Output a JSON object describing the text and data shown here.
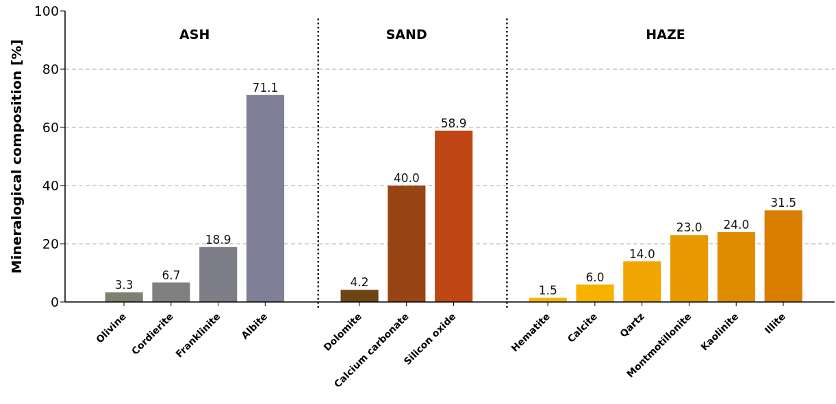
{
  "chart_data": {
    "type": "bar",
    "ylabel": "Mineralogical composition [%]",
    "categories": [
      "Olivine",
      "Cordierite",
      "Franklinite",
      "Albite",
      null,
      "Dolomite",
      "Calcium carbonate",
      "Silicon oxide",
      null,
      "Hematite",
      "Calcite",
      "Qartz",
      "Montmotillonite",
      "Kaolinite",
      "Illite"
    ],
    "values": [
      3.3,
      6.7,
      18.9,
      71.1,
      null,
      4.2,
      40.0,
      58.9,
      null,
      1.5,
      6.0,
      14.0,
      23.0,
      24.0,
      31.5
    ],
    "value_labels": [
      "3.3",
      "6.7",
      "18.9",
      "71.1",
      null,
      "4.2",
      "40.0",
      "58.9",
      null,
      "1.5",
      "6.0",
      "14.0",
      "23.0",
      "24.0",
      "31.5"
    ],
    "colors": [
      "#7f8070",
      "#808080",
      "#7e7e88",
      "#7f7f98",
      null,
      "#6e4415",
      "#994415",
      "#c04715",
      null,
      "#f5b800",
      "#f7b200",
      "#f0a500",
      "#e89800",
      "#e08c00",
      "#d97e00"
    ],
    "ylim": [
      0,
      100
    ],
    "yticks": [
      0,
      20,
      40,
      60,
      80,
      100
    ],
    "grid": "y",
    "legend": false,
    "annotations": [
      "ASH",
      "SAND",
      "HAZE"
    ]
  }
}
